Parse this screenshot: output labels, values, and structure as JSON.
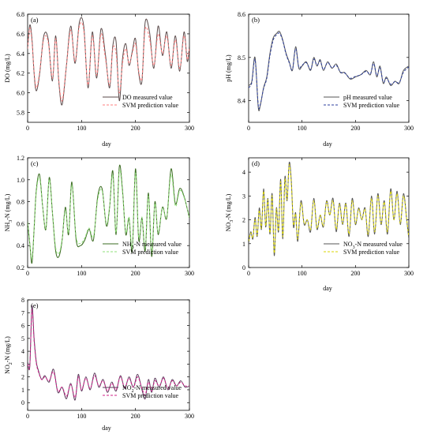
{
  "chart_data": [
    {
      "type": "line",
      "panel": "(a)",
      "xlabel": "day",
      "ylabel": "DO (mg/L)",
      "xlim": [
        0,
        300
      ],
      "ylim": [
        5.7,
        6.8
      ],
      "xticks": [
        0,
        100,
        200,
        300
      ],
      "yticks": [
        5.8,
        6.0,
        6.2,
        6.4,
        6.6,
        6.8
      ],
      "legend_position": "bottom-right",
      "colors": {
        "measured": "#5a4a4a",
        "predicted": "#ff7f7f"
      },
      "x": [
        0,
        4,
        8,
        12,
        16,
        22,
        30,
        38,
        46,
        52,
        58,
        64,
        72,
        80,
        88,
        96,
        104,
        112,
        120,
        128,
        136,
        144,
        152,
        158,
        164,
        170,
        176,
        182,
        188,
        194,
        200,
        206,
        212,
        218,
        226,
        234,
        242,
        250,
        258,
        266,
        274,
        282,
        290,
        296,
        300
      ],
      "series": [
        {
          "name": "DO measured value",
          "values": [
            6.45,
            6.69,
            6.55,
            6.2,
            6.02,
            6.18,
            6.58,
            6.55,
            6.12,
            6.58,
            6.1,
            5.88,
            6.28,
            6.68,
            6.3,
            6.72,
            6.68,
            6.05,
            6.62,
            6.15,
            6.65,
            6.4,
            6.05,
            6.48,
            6.52,
            5.92,
            6.35,
            6.5,
            6.28,
            6.42,
            6.55,
            6.2,
            6.12,
            6.72,
            6.62,
            6.25,
            6.68,
            6.38,
            6.62,
            6.25,
            6.58,
            6.22,
            6.62,
            6.32,
            6.48
          ]
        },
        {
          "name": "SVM prediction value",
          "values": [
            6.45,
            6.66,
            6.52,
            6.22,
            6.05,
            6.2,
            6.55,
            6.52,
            6.15,
            6.55,
            6.12,
            5.92,
            6.28,
            6.64,
            6.32,
            6.68,
            6.64,
            6.08,
            6.58,
            6.18,
            6.6,
            6.36,
            6.08,
            6.45,
            6.4,
            6.0,
            6.3,
            6.45,
            6.3,
            6.4,
            6.5,
            6.22,
            6.15,
            6.65,
            6.55,
            6.28,
            6.6,
            6.4,
            6.58,
            6.28,
            6.54,
            6.25,
            6.58,
            6.34,
            6.46
          ]
        }
      ]
    },
    {
      "type": "line",
      "panel": "(b)",
      "xlabel": "day",
      "ylabel": "pH (mg/L)",
      "xlim": [
        0,
        300
      ],
      "ylim": [
        8.35,
        8.6
      ],
      "xticks": [
        0,
        100,
        200,
        300
      ],
      "yticks": [
        8.4,
        8.5,
        8.6
      ],
      "legend_position": "bottom-right",
      "colors": {
        "measured": "#555555",
        "predicted": "#2b3d9c"
      },
      "x": [
        0,
        6,
        12,
        18,
        22,
        28,
        34,
        40,
        46,
        52,
        58,
        64,
        70,
        76,
        82,
        88,
        94,
        100,
        108,
        116,
        122,
        128,
        134,
        140,
        148,
        156,
        164,
        172,
        180,
        190,
        200,
        210,
        220,
        228,
        234,
        240,
        246,
        252,
        258,
        266,
        274,
        282,
        290,
        300
      ],
      "series": [
        {
          "name": "pH measured value",
          "values": [
            8.435,
            8.445,
            8.5,
            8.385,
            8.39,
            8.43,
            8.455,
            8.51,
            8.545,
            8.555,
            8.56,
            8.54,
            8.51,
            8.49,
            8.47,
            8.525,
            8.475,
            8.48,
            8.49,
            8.47,
            8.5,
            8.48,
            8.495,
            8.47,
            8.49,
            8.475,
            8.485,
            8.465,
            8.465,
            8.45,
            8.455,
            8.46,
            8.47,
            8.46,
            8.49,
            8.455,
            8.48,
            8.44,
            8.455,
            8.435,
            8.445,
            8.44,
            8.47,
            8.48
          ]
        },
        {
          "name": "SVM prediction value",
          "values": [
            8.43,
            8.442,
            8.495,
            8.39,
            8.392,
            8.428,
            8.452,
            8.505,
            8.54,
            8.552,
            8.556,
            8.538,
            8.508,
            8.488,
            8.472,
            8.52,
            8.478,
            8.482,
            8.488,
            8.472,
            8.496,
            8.482,
            8.492,
            8.472,
            8.488,
            8.476,
            8.482,
            8.466,
            8.464,
            8.452,
            8.456,
            8.46,
            8.468,
            8.462,
            8.486,
            8.458,
            8.476,
            8.443,
            8.452,
            8.438,
            8.444,
            8.442,
            8.466,
            8.478
          ]
        }
      ]
    },
    {
      "type": "line",
      "panel": "(c)",
      "xlabel": "",
      "ylabel": "NH3-N (mg/L)",
      "xlim": [
        0,
        300
      ],
      "ylim": [
        0.2,
        1.2
      ],
      "xticks": [
        0,
        100,
        200,
        300
      ],
      "yticks": [
        0.2,
        0.4,
        0.6,
        0.8,
        1.0,
        1.2
      ],
      "legend_position": "bottom-right",
      "colors": {
        "measured": "#3a6b20",
        "predicted": "#8fe07a"
      },
      "x": [
        0,
        4,
        8,
        12,
        16,
        22,
        28,
        34,
        40,
        46,
        52,
        58,
        64,
        70,
        76,
        82,
        90,
        98,
        106,
        114,
        122,
        130,
        138,
        146,
        152,
        158,
        164,
        170,
        176,
        182,
        188,
        194,
        200,
        206,
        212,
        218,
        224,
        230,
        236,
        242,
        250,
        258,
        266,
        274,
        282,
        290,
        300
      ],
      "series": [
        {
          "name": "NH3-N measured value",
          "values": [
            0.62,
            0.42,
            0.24,
            0.55,
            0.9,
            1.05,
            0.75,
            0.55,
            1.02,
            0.7,
            0.35,
            0.3,
            0.45,
            0.75,
            0.5,
            0.98,
            0.45,
            0.4,
            0.45,
            0.55,
            0.45,
            0.85,
            0.92,
            0.58,
            0.75,
            1.08,
            0.5,
            1.12,
            0.9,
            0.5,
            0.65,
            0.35,
            1.1,
            0.45,
            0.65,
            0.35,
            0.88,
            0.3,
            0.8,
            0.5,
            0.75,
            0.65,
            1.1,
            0.78,
            0.92,
            0.85,
            0.65
          ]
        },
        {
          "name": "SVM prediction value",
          "values": [
            0.6,
            0.42,
            0.28,
            0.55,
            0.88,
            1.02,
            0.75,
            0.56,
            1.0,
            0.7,
            0.38,
            0.33,
            0.46,
            0.72,
            0.52,
            0.95,
            0.48,
            0.42,
            0.47,
            0.56,
            0.48,
            0.82,
            0.9,
            0.6,
            0.76,
            1.04,
            0.52,
            1.08,
            0.88,
            0.52,
            0.66,
            0.38,
            1.06,
            0.48,
            0.66,
            0.38,
            0.85,
            0.34,
            0.78,
            0.52,
            0.74,
            0.66,
            1.05,
            0.76,
            0.9,
            0.84,
            0.66
          ]
        }
      ]
    },
    {
      "type": "line",
      "panel": "(d)",
      "xlabel": "day",
      "ylabel": "NO3-N (mg/L)",
      "xlim": [
        0,
        300
      ],
      "ylim": [
        0,
        4.6
      ],
      "xticks": [
        0,
        100,
        200,
        300
      ],
      "yticks": [
        0,
        1,
        2,
        3,
        4
      ],
      "legend_position": "bottom-right",
      "colors": {
        "measured": "#555555",
        "predicted": "#d8d400"
      },
      "x": [
        0,
        4,
        8,
        12,
        16,
        20,
        24,
        28,
        32,
        36,
        40,
        44,
        48,
        52,
        56,
        60,
        64,
        68,
        72,
        76,
        80,
        84,
        88,
        92,
        98,
        104,
        110,
        116,
        122,
        128,
        134,
        140,
        146,
        152,
        158,
        164,
        170,
        176,
        182,
        188,
        194,
        200,
        206,
        212,
        218,
        224,
        230,
        236,
        242,
        248,
        254,
        260,
        266,
        272,
        278,
        284,
        290,
        296,
        300
      ],
      "series": [
        {
          "name": "NO3-N measured value",
          "values": [
            1.0,
            1.5,
            1.2,
            2.1,
            1.3,
            2.5,
            1.6,
            3.3,
            1.7,
            2.9,
            1.4,
            3.1,
            0.5,
            2.5,
            1.5,
            3.7,
            1.2,
            3.8,
            2.8,
            4.4,
            3.6,
            1.7,
            2.3,
            1.1,
            2.8,
            1.8,
            2.0,
            1.5,
            2.9,
            1.6,
            2.2,
            1.7,
            2.8,
            2.2,
            2.9,
            1.5,
            2.7,
            1.8,
            2.7,
            1.3,
            2.9,
            1.8,
            2.5,
            2.0,
            2.5,
            1.3,
            3.0,
            1.4,
            3.1,
            1.8,
            2.8,
            1.4,
            3.3,
            2.0,
            3.2,
            1.8,
            3.1,
            2.0,
            1.2
          ]
        },
        {
          "name": "SVM prediction value",
          "values": [
            1.1,
            1.45,
            1.25,
            2.0,
            1.35,
            2.4,
            1.65,
            3.2,
            1.75,
            2.85,
            1.45,
            3.0,
            0.6,
            2.45,
            1.55,
            3.6,
            1.3,
            3.7,
            2.85,
            4.3,
            3.5,
            1.8,
            2.25,
            1.2,
            2.7,
            1.85,
            2.0,
            1.6,
            2.8,
            1.65,
            2.2,
            1.75,
            2.75,
            2.2,
            2.8,
            1.6,
            2.65,
            1.85,
            2.65,
            1.4,
            2.8,
            1.85,
            2.45,
            2.0,
            2.45,
            1.4,
            2.9,
            1.5,
            3.0,
            1.85,
            2.75,
            1.5,
            3.2,
            2.0,
            3.1,
            1.85,
            3.0,
            2.0,
            1.3
          ]
        }
      ]
    },
    {
      "type": "line",
      "panel": "(e)",
      "xlabel": "day",
      "ylabel": "NO2-N (mg/L)",
      "xlim": [
        0,
        300
      ],
      "ylim": [
        -0.6,
        8
      ],
      "xticks": [
        0,
        100,
        200,
        300
      ],
      "yticks": [
        0,
        1,
        2,
        3,
        4,
        5,
        6,
        7,
        8
      ],
      "legend_position": "bottom-right",
      "colors": {
        "measured": "#5a3a5a",
        "predicted": "#d0208a"
      },
      "x": [
        0,
        4,
        8,
        12,
        16,
        20,
        26,
        32,
        40,
        48,
        56,
        64,
        72,
        80,
        88,
        94,
        100,
        108,
        116,
        124,
        132,
        140,
        148,
        156,
        164,
        172,
        180,
        188,
        196,
        204,
        212,
        218,
        224,
        230,
        236,
        244,
        252,
        260,
        268,
        276,
        284,
        292,
        300
      ],
      "series": [
        {
          "name": "NO2-N measured value",
          "values": [
            3.2,
            2.8,
            7.5,
            5.0,
            3.2,
            2.5,
            1.8,
            2.1,
            1.6,
            2.6,
            0.8,
            1.2,
            0.3,
            1.5,
            0.2,
            2.2,
            0.9,
            2.0,
            1.0,
            2.3,
            1.2,
            1.8,
            0.8,
            1.6,
            0.9,
            2.1,
            1.1,
            2.0,
            1.2,
            2.2,
            1.0,
            0.3,
            1.8,
            0.8,
            1.9,
            1.2,
            2.0,
            1.0,
            1.8,
            1.3,
            1.7,
            1.2,
            1.3
          ]
        },
        {
          "name": "SVM prediction value",
          "values": [
            3.0,
            2.9,
            7.2,
            4.8,
            3.1,
            2.4,
            1.8,
            2.0,
            1.7,
            2.4,
            0.9,
            1.2,
            0.5,
            1.4,
            0.4,
            2.0,
            1.0,
            1.9,
            1.1,
            2.1,
            1.3,
            1.7,
            0.9,
            1.5,
            1.0,
            2.0,
            1.2,
            1.9,
            1.2,
            2.0,
            1.1,
            0.6,
            1.6,
            0.9,
            1.7,
            1.3,
            1.9,
            1.1,
            1.7,
            1.3,
            1.6,
            1.3,
            1.3
          ]
        }
      ]
    }
  ]
}
